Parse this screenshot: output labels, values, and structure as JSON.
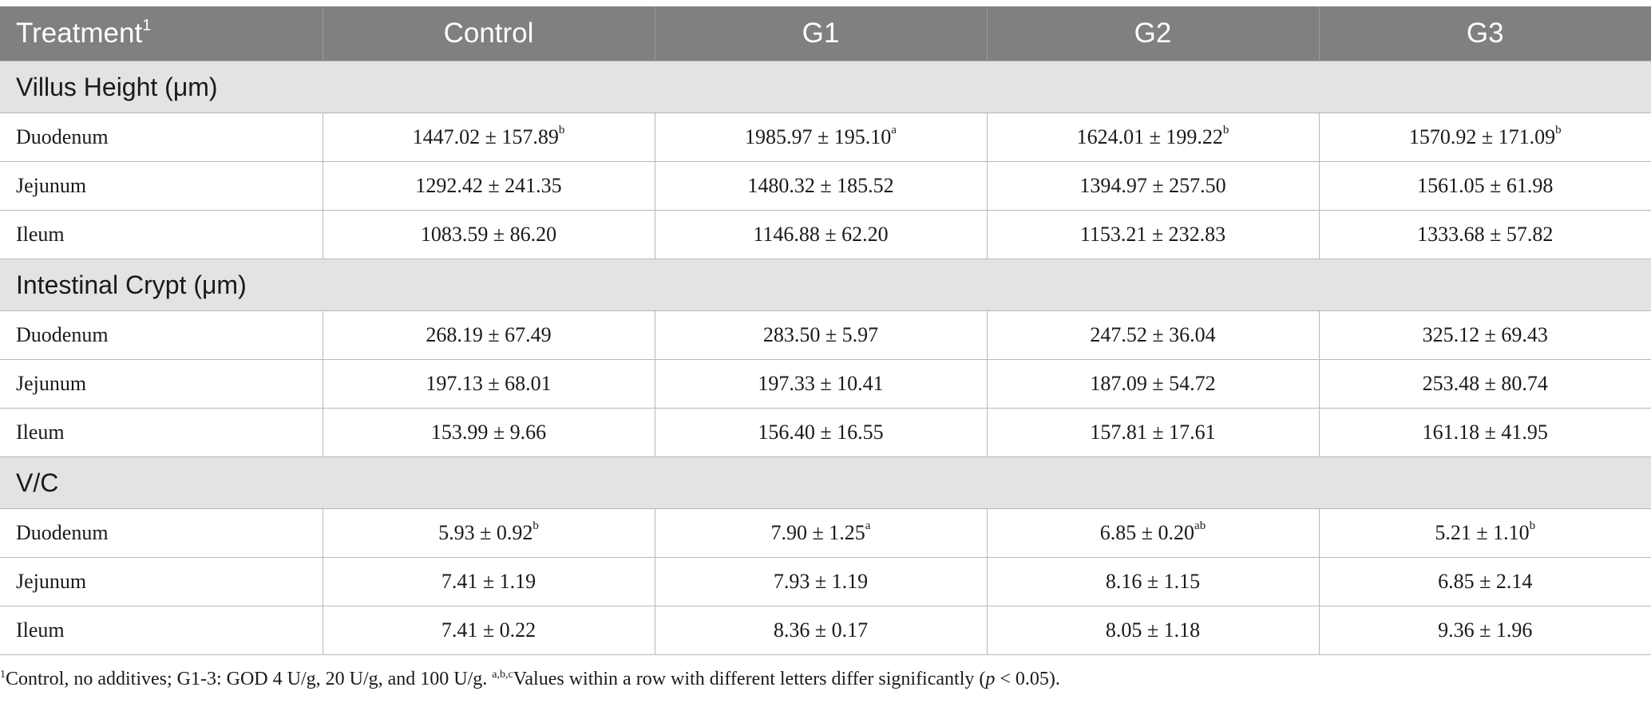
{
  "header": {
    "treatment_label": "Treatment",
    "treatment_marker": "1",
    "columns": [
      "Control",
      "G1",
      "G2",
      "G3"
    ]
  },
  "sections": [
    {
      "title": "Villus Height (μm)",
      "rows": [
        {
          "label": "Duodenum",
          "cells": [
            {
              "value": "1447.02 ± 157.89",
              "sup": "b"
            },
            {
              "value": "1985.97 ± 195.10",
              "sup": "a"
            },
            {
              "value": "1624.01 ± 199.22",
              "sup": "b"
            },
            {
              "value": "1570.92 ± 171.09",
              "sup": "b"
            }
          ]
        },
        {
          "label": "Jejunum",
          "cells": [
            {
              "value": "1292.42 ± 241.35",
              "sup": ""
            },
            {
              "value": "1480.32 ± 185.52",
              "sup": ""
            },
            {
              "value": "1394.97 ± 257.50",
              "sup": ""
            },
            {
              "value": "1561.05 ± 61.98",
              "sup": ""
            }
          ]
        },
        {
          "label": "Ileum",
          "cells": [
            {
              "value": "1083.59 ± 86.20",
              "sup": ""
            },
            {
              "value": "1146.88 ± 62.20",
              "sup": ""
            },
            {
              "value": "1153.21 ± 232.83",
              "sup": ""
            },
            {
              "value": "1333.68 ± 57.82",
              "sup": ""
            }
          ]
        }
      ]
    },
    {
      "title": "Intestinal Crypt (μm)",
      "rows": [
        {
          "label": "Duodenum",
          "cells": [
            {
              "value": "268.19 ± 67.49",
              "sup": ""
            },
            {
              "value": "283.50 ± 5.97",
              "sup": ""
            },
            {
              "value": "247.52 ± 36.04",
              "sup": ""
            },
            {
              "value": "325.12 ± 69.43",
              "sup": ""
            }
          ]
        },
        {
          "label": "Jejunum",
          "cells": [
            {
              "value": "197.13 ± 68.01",
              "sup": ""
            },
            {
              "value": "197.33 ± 10.41",
              "sup": ""
            },
            {
              "value": "187.09 ± 54.72",
              "sup": ""
            },
            {
              "value": "253.48 ± 80.74",
              "sup": ""
            }
          ]
        },
        {
          "label": "Ileum",
          "cells": [
            {
              "value": "153.99 ± 9.66",
              "sup": ""
            },
            {
              "value": "156.40 ± 16.55",
              "sup": ""
            },
            {
              "value": "157.81 ± 17.61",
              "sup": ""
            },
            {
              "value": "161.18 ± 41.95",
              "sup": ""
            }
          ]
        }
      ]
    },
    {
      "title": "V/C",
      "rows": [
        {
          "label": "Duodenum",
          "cells": [
            {
              "value": "5.93 ± 0.92",
              "sup": "b"
            },
            {
              "value": "7.90 ± 1.25",
              "sup": "a"
            },
            {
              "value": "6.85 ± 0.20",
              "sup": "ab"
            },
            {
              "value": "5.21 ± 1.10",
              "sup": "b"
            }
          ]
        },
        {
          "label": "Jejunum",
          "cells": [
            {
              "value": "7.41 ± 1.19",
              "sup": ""
            },
            {
              "value": "7.93 ± 1.19",
              "sup": ""
            },
            {
              "value": "8.16 ± 1.15",
              "sup": ""
            },
            {
              "value": "6.85 ± 2.14",
              "sup": ""
            }
          ]
        },
        {
          "label": "Ileum",
          "cells": [
            {
              "value": "7.41 ± 0.22",
              "sup": ""
            },
            {
              "value": "8.36 ± 0.17",
              "sup": ""
            },
            {
              "value": "8.05 ± 1.18",
              "sup": ""
            },
            {
              "value": "9.36 ± 1.96",
              "sup": ""
            }
          ]
        }
      ]
    }
  ],
  "footnote": {
    "marker1": "1",
    "part1": "Control, no additives; G1-3: GOD 4 U/g, 20 U/g, and 100 U/g. ",
    "marker2": "a,b,c",
    "part2": "Values within a row with different letters differ significantly (",
    "p_symbol": "p",
    "part3": " < 0.05)."
  }
}
